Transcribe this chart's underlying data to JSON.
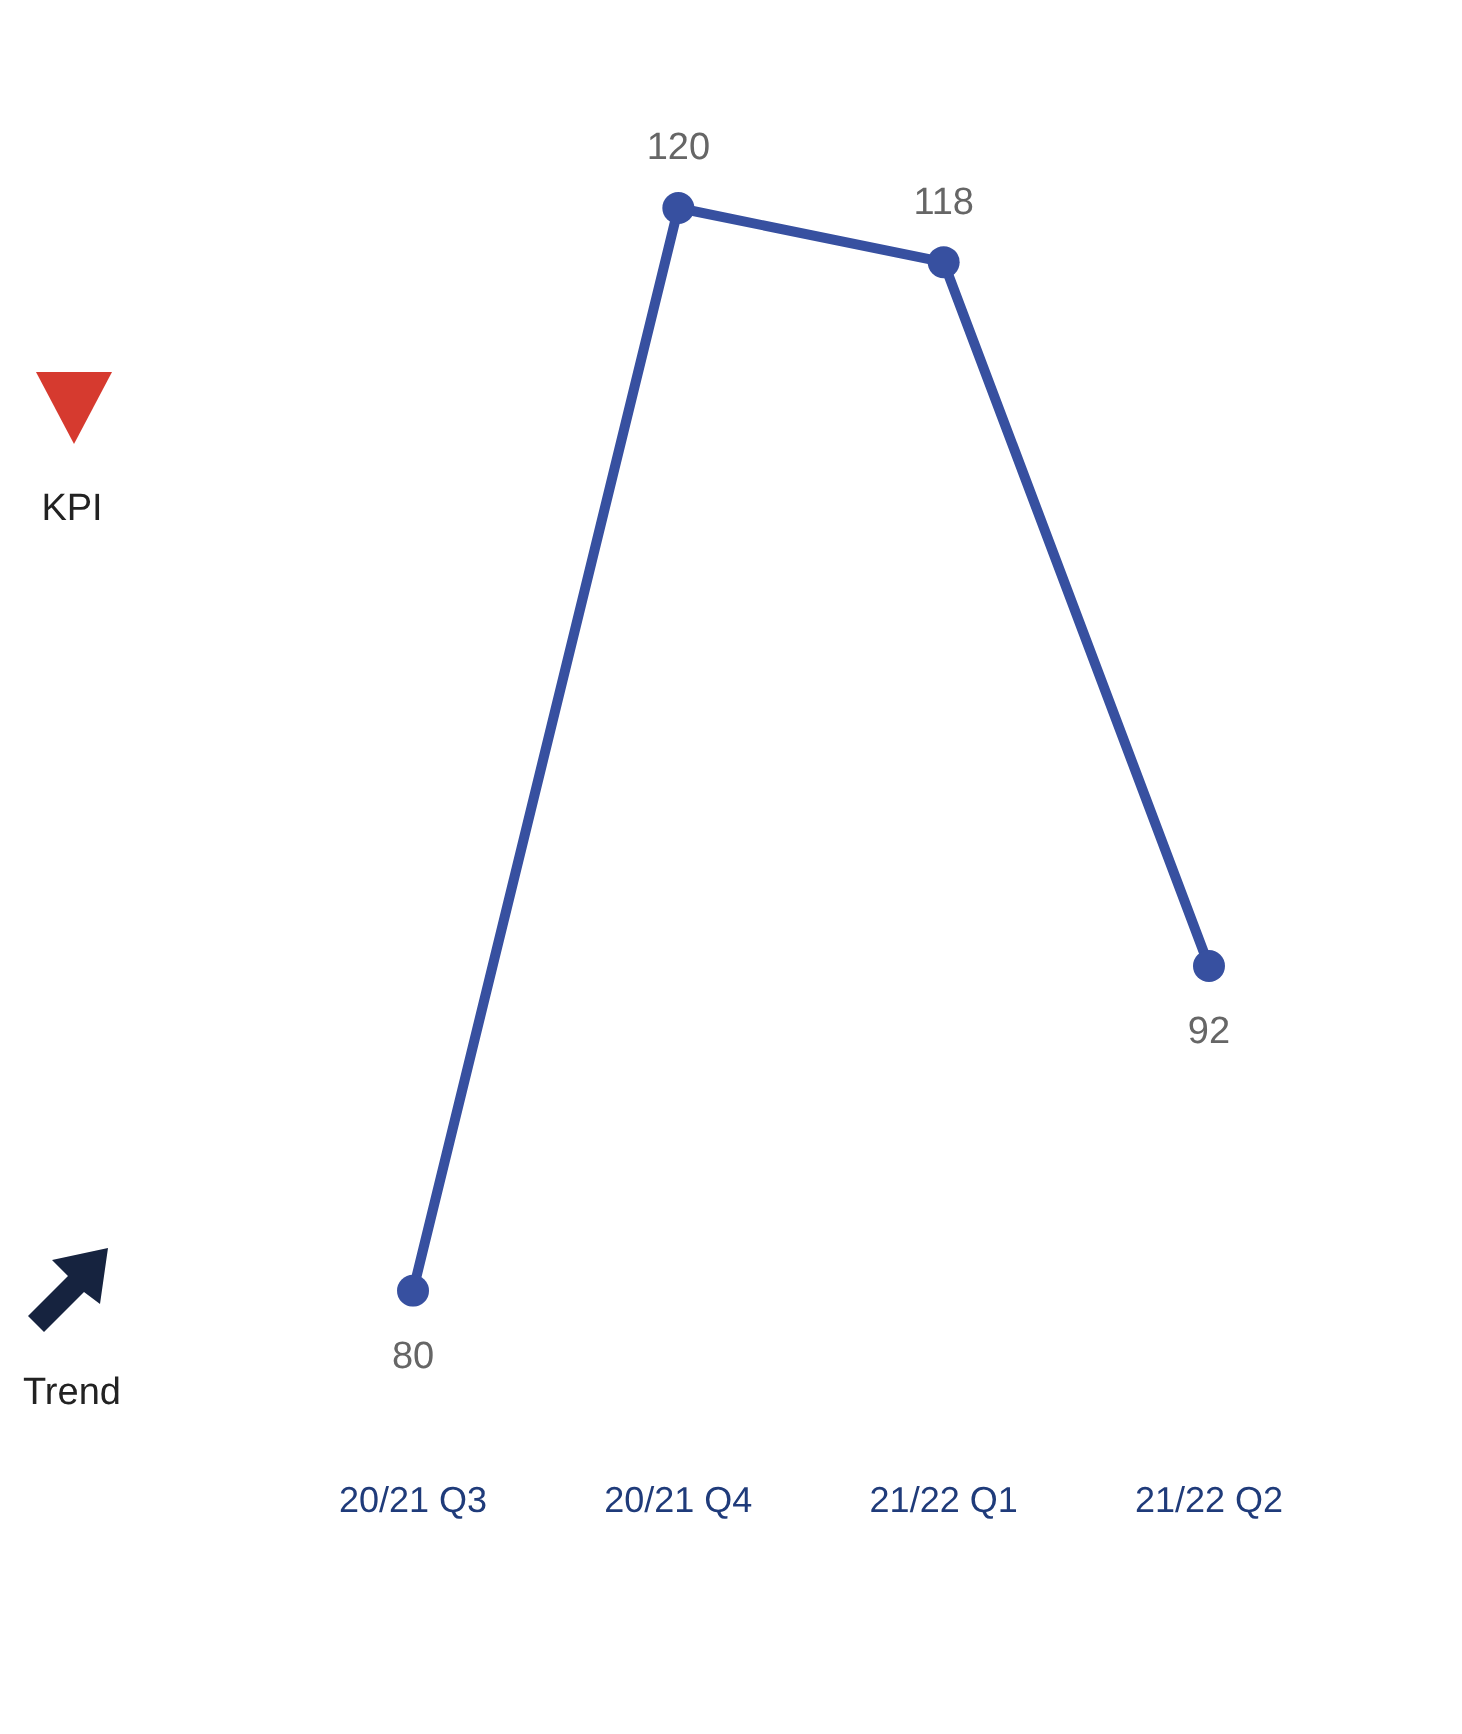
{
  "chart_data": {
    "type": "line",
    "categories": [
      "20/21 Q3",
      "20/21 Q4",
      "21/22 Q1",
      "21/22 Q2"
    ],
    "series": [
      {
        "color": "#3750a0",
        "values": [
          80,
          120,
          118,
          92
        ]
      }
    ],
    "data_labels": true,
    "marker": "circle",
    "line_style": "solid",
    "grid": false,
    "legend": false,
    "annotations": [
      "KPI",
      "Trend"
    ]
  }
}
